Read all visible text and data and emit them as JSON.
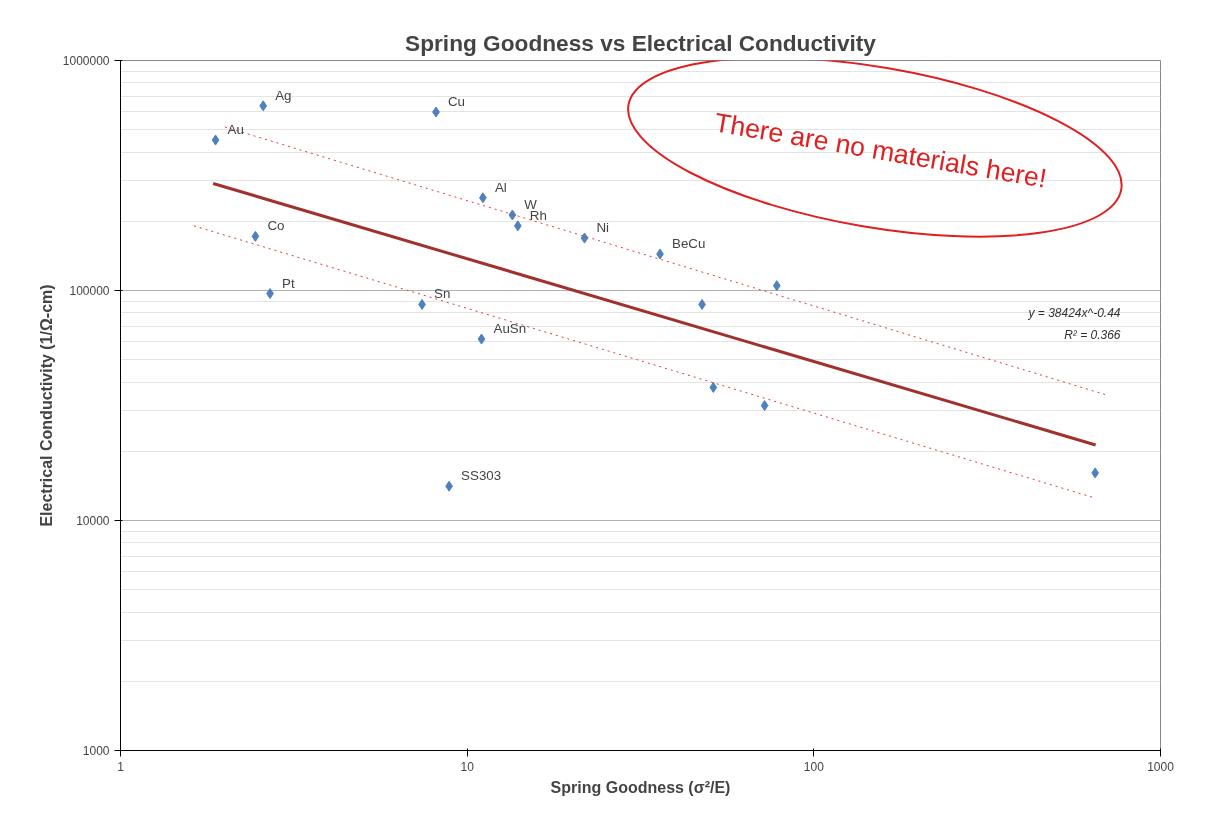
{
  "chart_data": {
    "type": "scatter",
    "title": "Spring Goodness vs Electrical Conductivity",
    "xlabel": "Spring Goodness (σ²/E)",
    "ylabel": "Electrical Conductivity (1/Ω-cm)",
    "log": "xy",
    "grid": "y",
    "xlim": [
      1,
      1000
    ],
    "xticks": [
      1,
      10,
      100,
      1000
    ],
    "ylim": [
      1000,
      1000000
    ],
    "yticks": [
      1000,
      10000,
      100000,
      1000000
    ],
    "series": [
      {
        "type": "scatter",
        "marker": "diamond",
        "color": "#4f81bd",
        "x": [
          2.58,
          8.13,
          1.88,
          11.1,
          13.5,
          14.0,
          21.8,
          36.0,
          2.45,
          78.2,
          2.7,
          47.6,
          7.41,
          11.0,
          51.3,
          72.1,
          8.87,
          648
        ],
        "values": [
          635000,
          597000,
          451000,
          253000,
          213000,
          191000,
          169000,
          144000,
          172000,
          105000,
          97000,
          87000,
          87000,
          61500,
          37900,
          31600,
          14100,
          16100
        ]
      },
      {
        "type": "line",
        "color": "#a0322e",
        "x": [
          1.85,
          650
        ],
        "values": [
          292000,
          21300
        ]
      },
      {
        "type": "line",
        "color": "#e03a3a",
        "line_style": "dotted",
        "x": [
          2.0,
          692
        ],
        "values": [
          514000,
          35300
        ]
      },
      {
        "type": "line",
        "color": "#e03a3a",
        "line_style": "dotted",
        "x": [
          1.63,
          650
        ],
        "values": [
          191000,
          12500
        ]
      }
    ],
    "annotations": [
      {
        "text": "Ag",
        "x": 2.58,
        "y": 635000
      },
      {
        "text": "Cu",
        "x": 8.13,
        "y": 597000
      },
      {
        "text": "Au",
        "x": 1.88,
        "y": 451000
      },
      {
        "text": "Al",
        "x": 11.1,
        "y": 253000
      },
      {
        "text": "W",
        "x": 13.5,
        "y": 213000
      },
      {
        "text": "Rh",
        "x": 14.0,
        "y": 191000
      },
      {
        "text": "Ni",
        "x": 21.8,
        "y": 169000
      },
      {
        "text": "BeCu",
        "x": 36.0,
        "y": 144000
      },
      {
        "text": "Co",
        "x": 2.45,
        "y": 172000
      },
      {
        "text": "Pt",
        "x": 2.7,
        "y": 97000
      },
      {
        "text": "Sn",
        "x": 7.41,
        "y": 87000
      },
      {
        "text": "AuSn",
        "x": 11.0,
        "y": 61500
      },
      {
        "text": "SS303",
        "x": 8.87,
        "y": 14100
      },
      "y = 38424x^-0.44",
      "R² = 0.366",
      "There are no materials here!"
    ]
  }
}
